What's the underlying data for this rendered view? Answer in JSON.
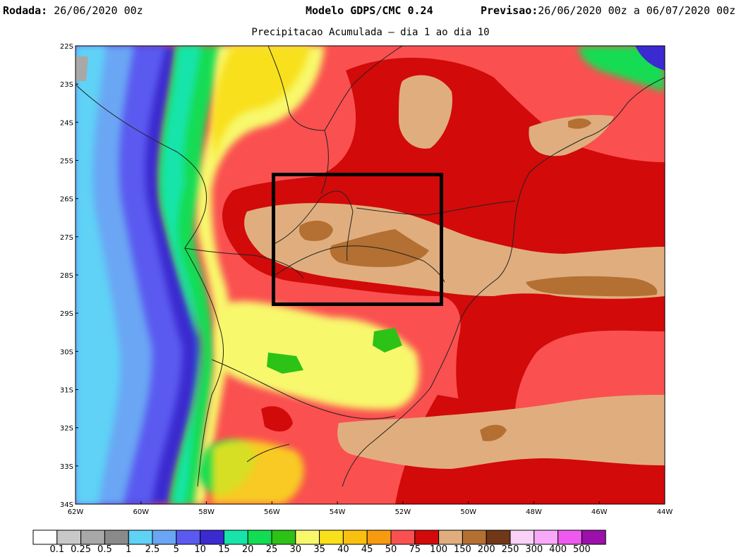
{
  "header": {
    "run_label": "Rodada:",
    "run_value": "26/06/2020 00z",
    "model": "Modelo GDPS/CMC 0.24",
    "forecast_label": "Previsao:",
    "forecast_value": "26/06/2020 00z a 06/07/2020 00z",
    "subtitle": "Precipitacao Acumulada – dia 1 ao dia 10"
  },
  "axes": {
    "lat_labels": [
      "22S",
      "23S",
      "24S",
      "25S",
      "26S",
      "27S",
      "28S",
      "29S",
      "30S",
      "31S",
      "32S",
      "33S",
      "34S"
    ],
    "lon_labels": [
      "62W",
      "60W",
      "58W",
      "56W",
      "54W",
      "52W",
      "50W",
      "48W",
      "46W",
      "44W"
    ]
  },
  "legend": {
    "colors": [
      "#ffffff",
      "#c8c8c8",
      "#a8a8a8",
      "#8a8a8a",
      "#5fd2f6",
      "#6aa6f4",
      "#5a5af0",
      "#3a2ad0",
      "#16e4aa",
      "#12dc52",
      "#2cc216",
      "#f8f86c",
      "#f8e01a",
      "#fac010",
      "#f89a10",
      "#fa5050",
      "#d20a0a",
      "#e0ae7e",
      "#b37032",
      "#703816",
      "#fad2f8",
      "#f8aaf8",
      "#ee5aee",
      "#9a10a8"
    ],
    "labels": [
      "0.1",
      "0.25",
      "0.5",
      "1",
      "2.5",
      "5",
      "10",
      "15",
      "20",
      "25",
      "30",
      "35",
      "40",
      "45",
      "50",
      "75",
      "100",
      "150",
      "200",
      "250",
      "300",
      "400",
      "500"
    ]
  },
  "colors": {
    "dark_red": "#d20a0a",
    "red": "#fa5050",
    "tan": "#e0ae7e",
    "brown": "#b37032",
    "box": "#000000"
  }
}
